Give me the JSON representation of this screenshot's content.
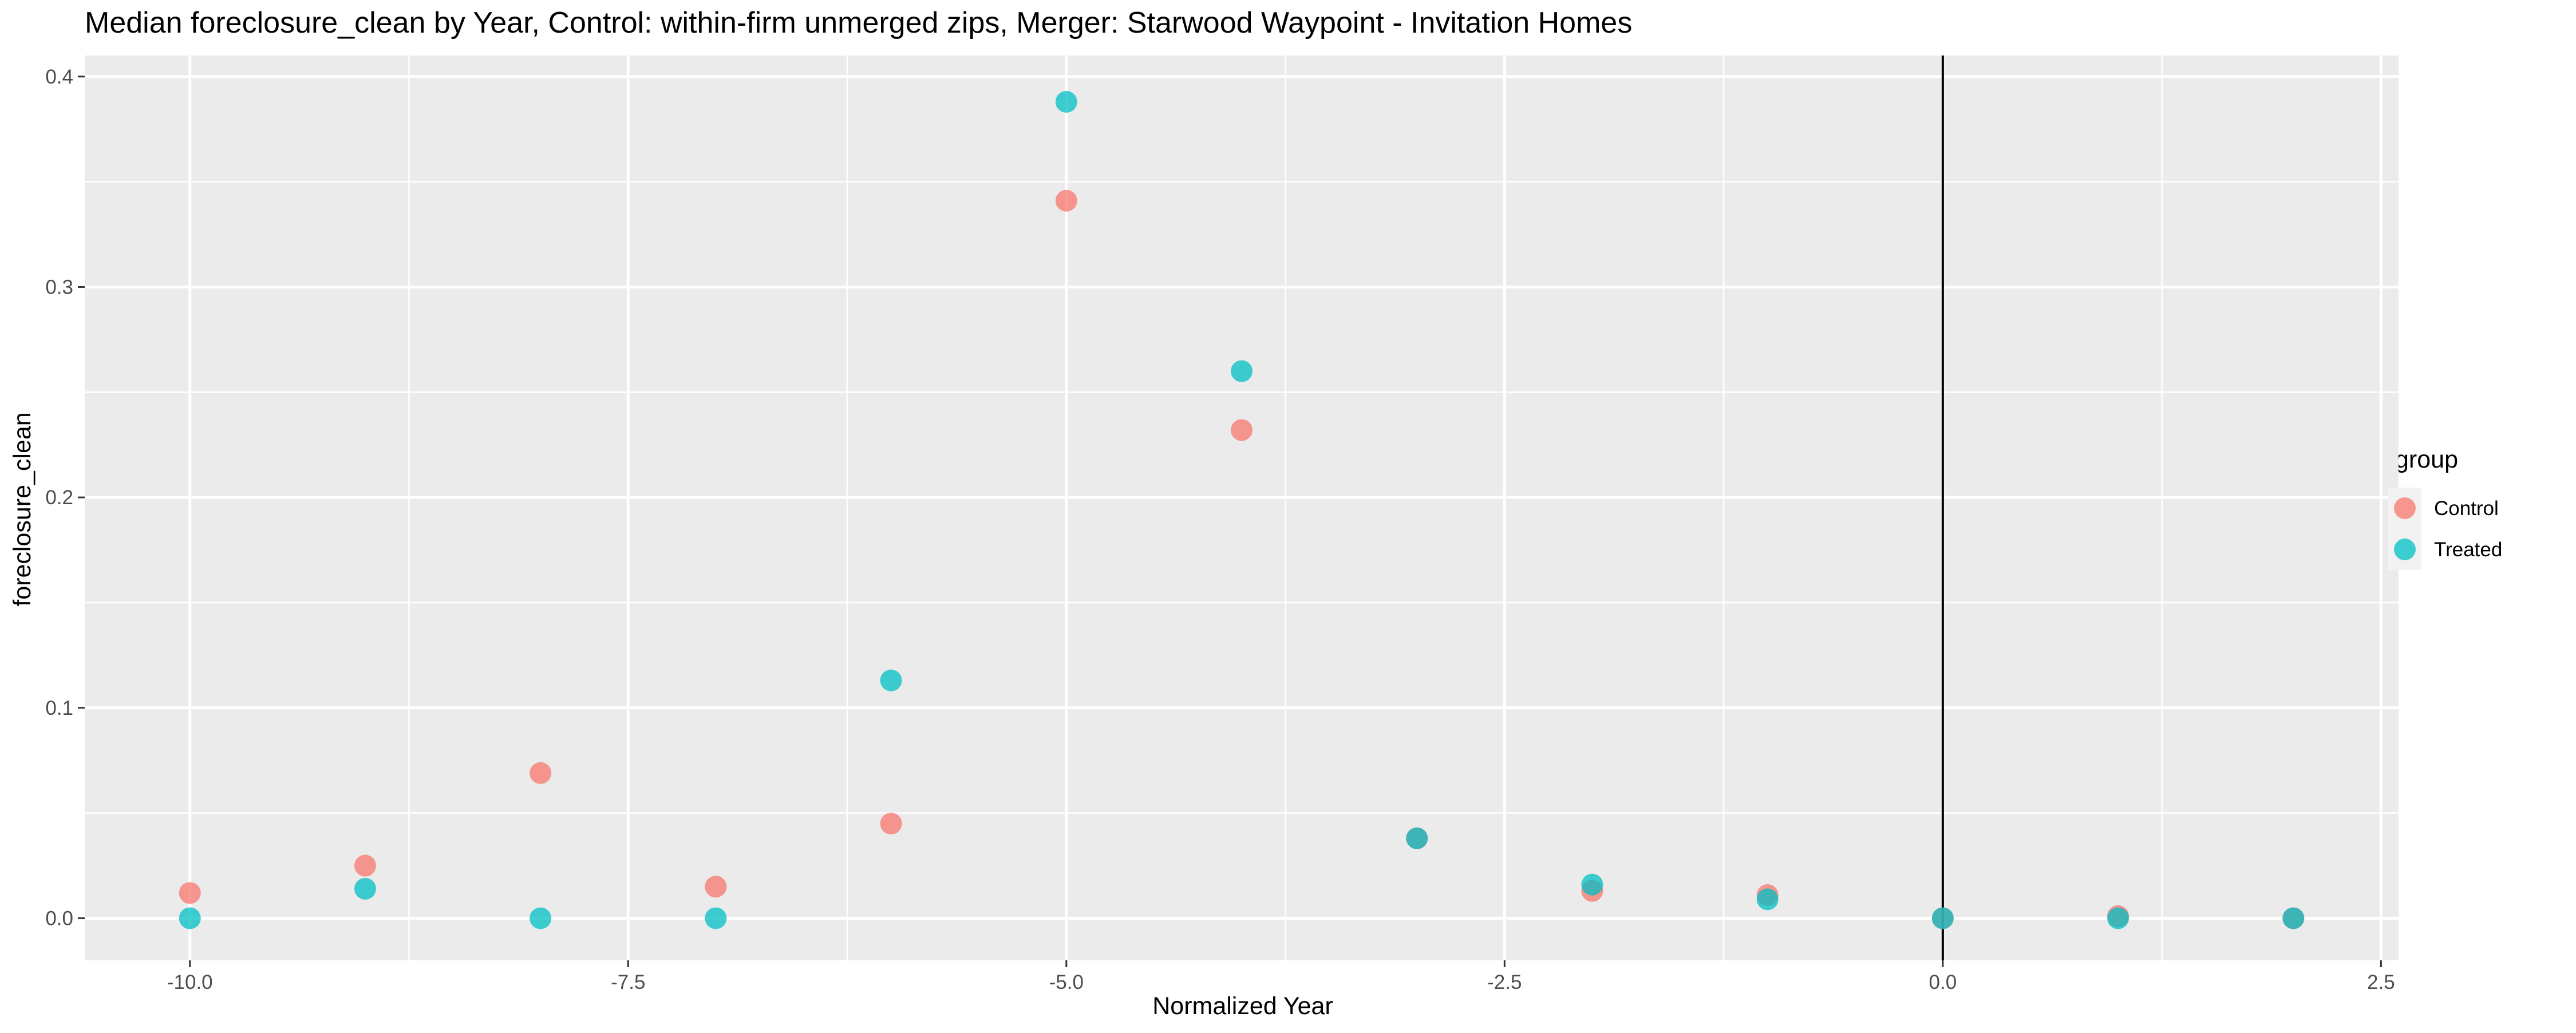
{
  "chart_data": {
    "type": "scatter",
    "title": "Median foreclosure_clean by Year, Control: within-firm unmerged zips, Merger: Starwood Waypoint - Invitation Homes",
    "xlabel": "Normalized Year",
    "ylabel": "foreclosure_clean",
    "xlim": [
      -10.6,
      2.6
    ],
    "ylim": [
      -0.02,
      0.41
    ],
    "x_ticks": [
      -10.0,
      -7.5,
      -5.0,
      -2.5,
      0.0,
      2.5
    ],
    "x_tick_labels": [
      "-10.0",
      "-7.5",
      "-5.0",
      "-2.5",
      "0.0",
      "2.5"
    ],
    "y_ticks": [
      0.0,
      0.1,
      0.2,
      0.3,
      0.4
    ],
    "y_tick_labels": [
      "0.0",
      "0.1",
      "0.2",
      "0.3",
      "0.4"
    ],
    "grid": true,
    "vline": 0,
    "legend": {
      "title": "group",
      "position": "right"
    },
    "series": [
      {
        "name": "Control",
        "color": "#F8766D",
        "x": [
          -10,
          -9,
          -8,
          -7,
          -6,
          -5,
          -4,
          -3,
          -2,
          -1,
          0,
          1,
          2
        ],
        "y": [
          0.012,
          0.025,
          0.069,
          0.015,
          0.045,
          0.341,
          0.232,
          0.038,
          0.013,
          0.011,
          0.0,
          0.001,
          0.0
        ]
      },
      {
        "name": "Treated",
        "color": "#00BFC4",
        "x": [
          -10,
          -9,
          -8,
          -7,
          -6,
          -5,
          -4,
          -3,
          -2,
          -1,
          0,
          1,
          2
        ],
        "y": [
          0.0,
          0.014,
          0.0,
          0.0,
          0.113,
          0.388,
          0.26,
          0.038,
          0.016,
          0.009,
          0.0,
          0.0,
          0.0
        ]
      }
    ]
  }
}
